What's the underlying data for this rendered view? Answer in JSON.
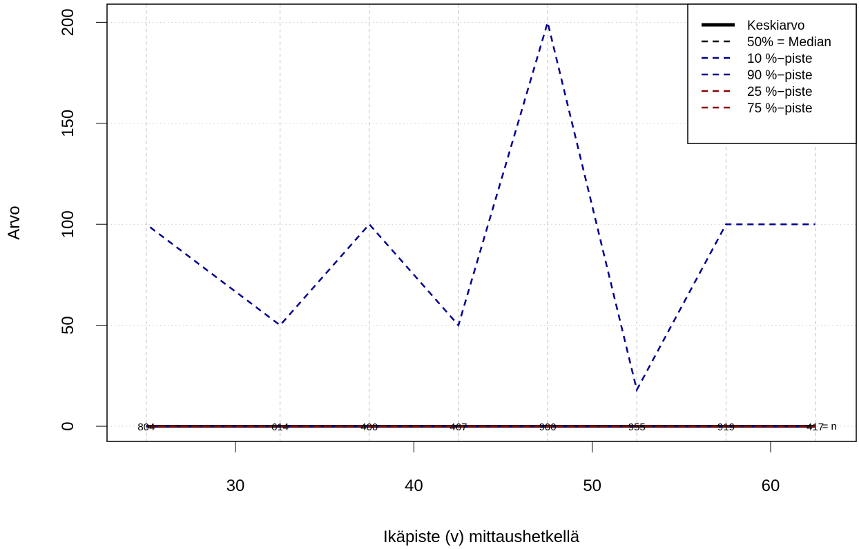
{
  "chart_data": {
    "type": "line",
    "title": "",
    "xlabel": "Ikäpiste (v) mittaushetkellä",
    "ylabel": "Arvo",
    "xlim": [
      22.8,
      64.8
    ],
    "ylim": [
      -7.5,
      209
    ],
    "x_ticks": [
      30,
      40,
      50,
      60
    ],
    "y_ticks": [
      0,
      50,
      100,
      150,
      200
    ],
    "grid": true,
    "legend_position": "top-right",
    "x": [
      25,
      32.5,
      37.5,
      42.5,
      47.5,
      52.5,
      57.5,
      62.5
    ],
    "n_values": [
      "804",
      "614",
      "400",
      "467",
      "900",
      "955",
      "919",
      "417"
    ],
    "n_label": "= n",
    "series": [
      {
        "name": "Keskiarvo",
        "color": "#000000",
        "style": "solid",
        "values": [
          0,
          0,
          0,
          0,
          0,
          0,
          0,
          0
        ]
      },
      {
        "name": "50% = Median",
        "color": "#000000",
        "style": "dashed",
        "values": [
          0,
          0,
          0,
          0,
          0,
          0,
          0,
          0
        ]
      },
      {
        "name": "10 %−piste",
        "color": "#00008b",
        "style": "dashed",
        "values": [
          0,
          0,
          0,
          0,
          0,
          0,
          0,
          0
        ]
      },
      {
        "name": "90 %−piste",
        "color": "#00008b",
        "style": "dashed",
        "values": [
          100,
          50,
          100,
          50,
          200,
          18,
          100,
          100
        ]
      },
      {
        "name": "25 %−piste",
        "color": "#8b0000",
        "style": "dashed",
        "values": [
          0,
          0,
          0,
          0,
          0,
          0,
          0,
          0
        ]
      },
      {
        "name": "75 %−piste",
        "color": "#8b0000",
        "style": "dashed",
        "values": [
          0,
          0,
          0,
          0,
          0,
          0,
          0,
          0
        ]
      }
    ]
  }
}
